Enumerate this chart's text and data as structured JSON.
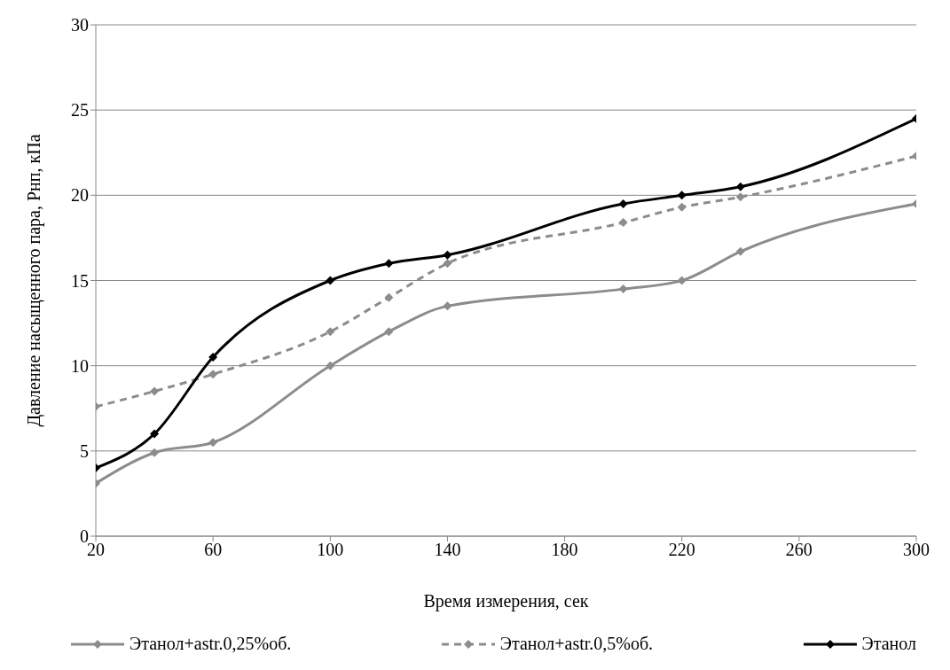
{
  "chart_data": {
    "type": "line",
    "xlabel": "Время измерения, сек",
    "ylabel": "Давление насыщенного пара, Рнп, кПа",
    "x": [
      20,
      40,
      60,
      100,
      120,
      140,
      200,
      220,
      240,
      300
    ],
    "series": [
      {
        "name": "Этанол+astr.0,25%об.",
        "color": "#8c8c8c",
        "line_style": "solid",
        "values": [
          3.1,
          4.9,
          5.5,
          10,
          12,
          13.5,
          14.5,
          15,
          16.7,
          19.5
        ]
      },
      {
        "name": "Этанол+astr.0,5%об.",
        "color": "#8c8c8c",
        "line_style": "dashed",
        "values": [
          7.6,
          8.5,
          9.5,
          12,
          14,
          16,
          18.4,
          19.3,
          19.9,
          22.3
        ]
      },
      {
        "name": "Этанол",
        "color": "#000000",
        "line_style": "solid",
        "values": [
          4,
          6,
          10.5,
          15,
          16,
          16.5,
          19.5,
          20,
          20.5,
          24.5
        ]
      }
    ],
    "xlim": [
      20,
      300
    ],
    "xticks": [
      20,
      60,
      100,
      140,
      180,
      220,
      260,
      300
    ],
    "ylim": [
      0,
      30
    ],
    "yticks": [
      0,
      5,
      10,
      15,
      20,
      25,
      30
    ],
    "grid": "y",
    "legend": "bottom",
    "marker": "diamond"
  }
}
